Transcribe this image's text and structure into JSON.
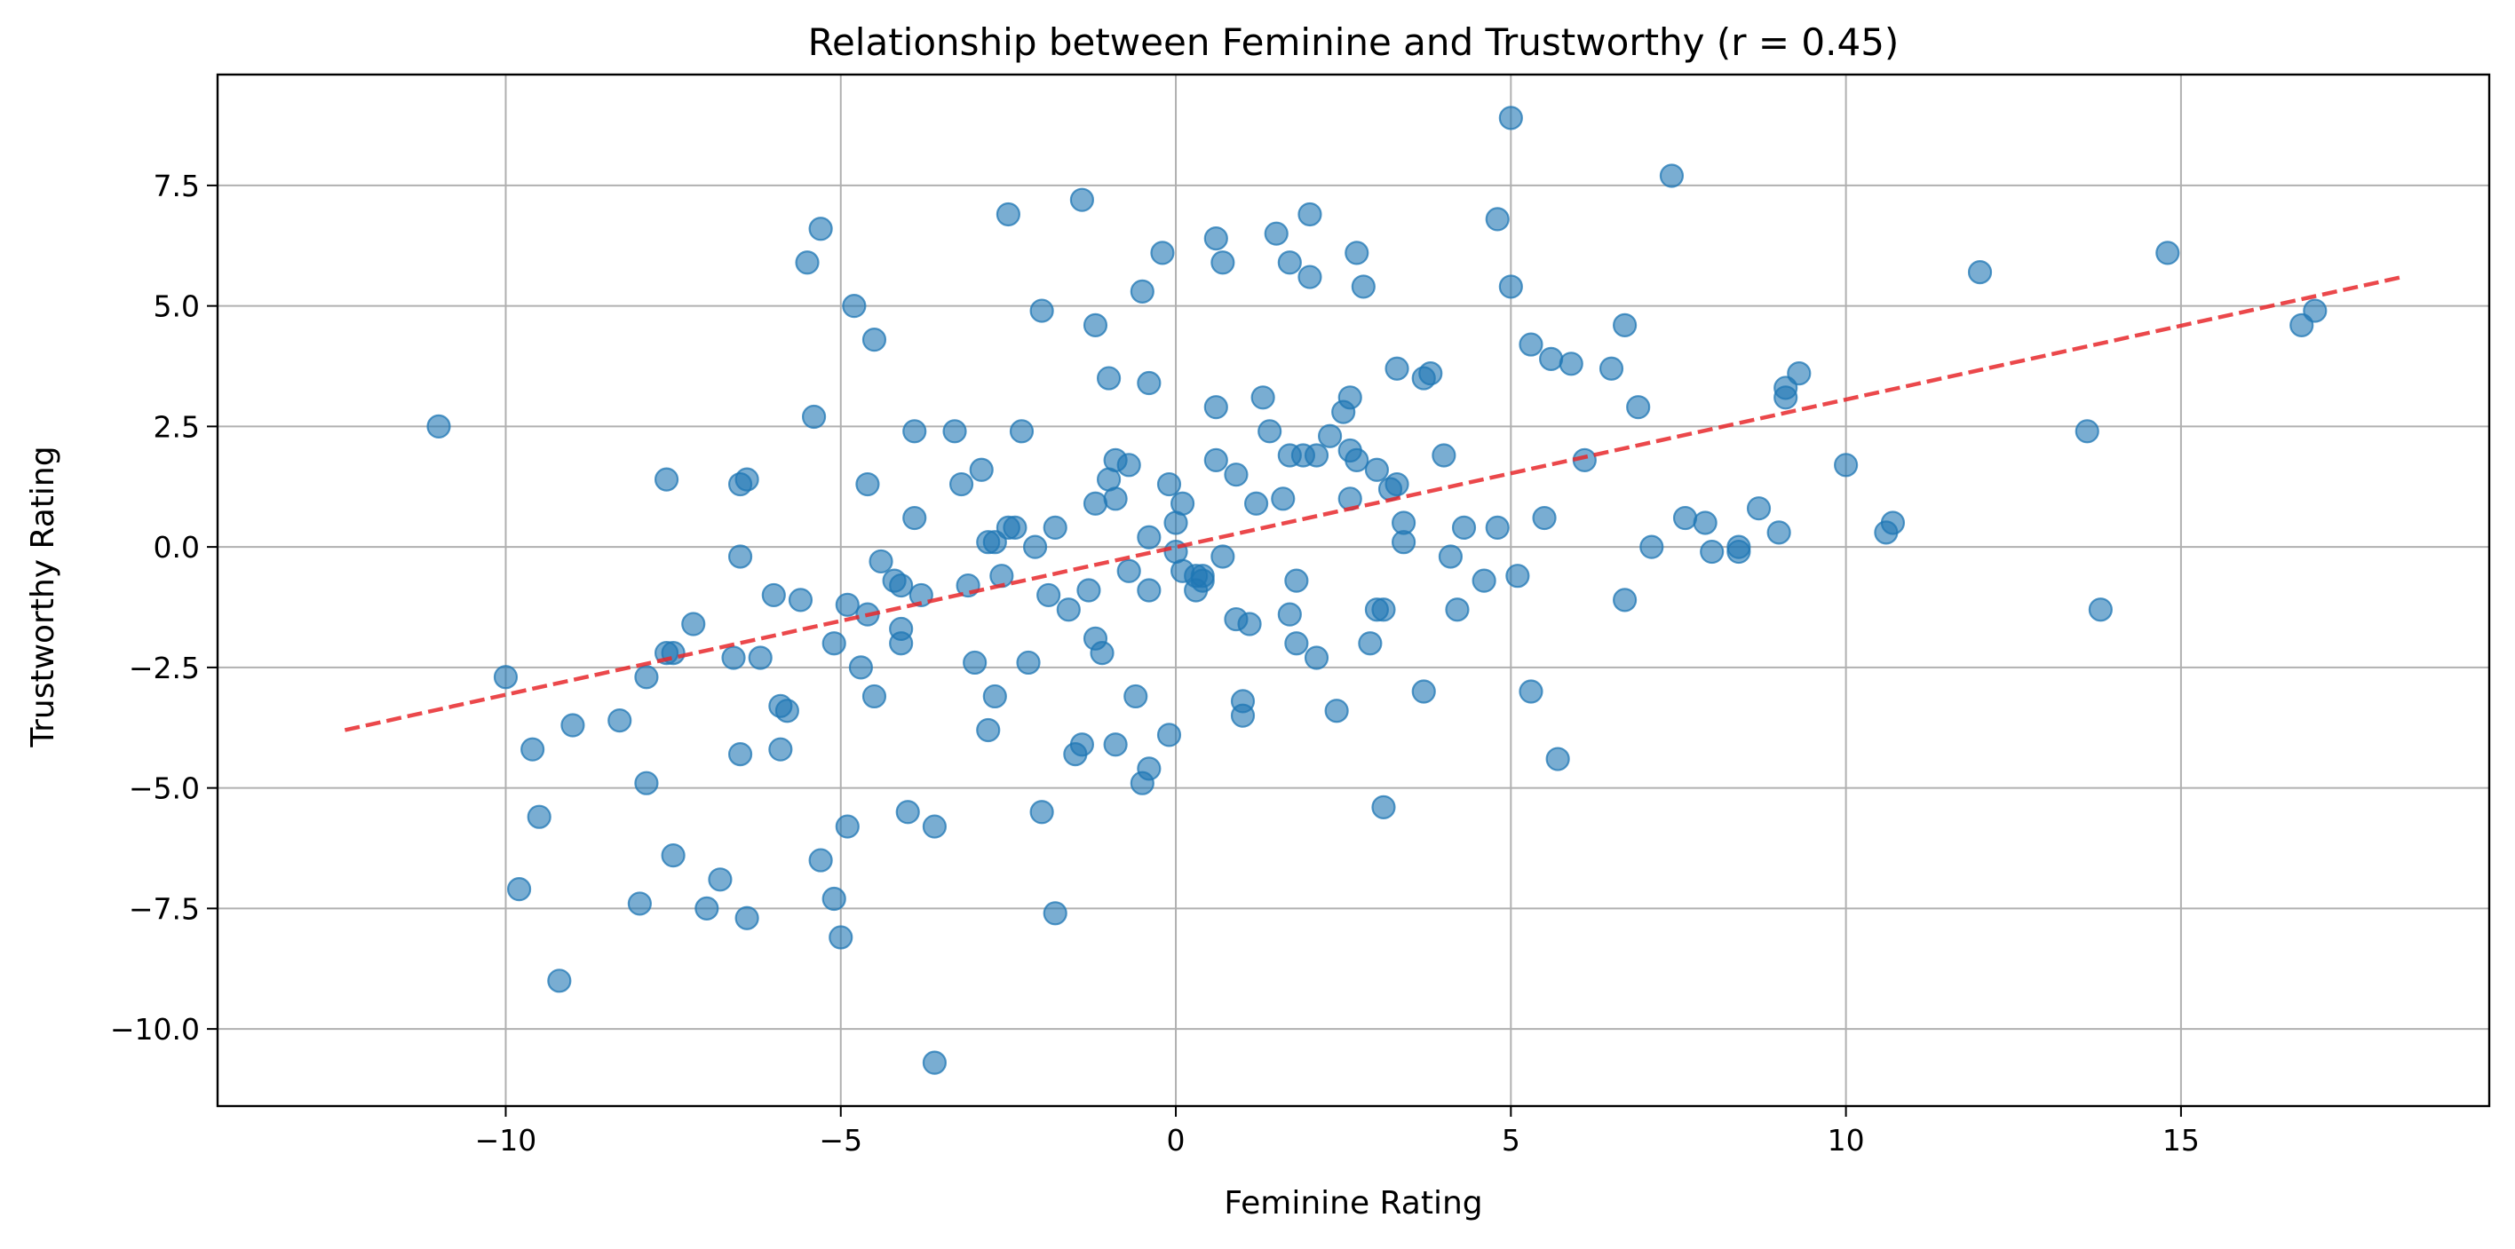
{
  "chart_data": {
    "type": "scatter",
    "title": "Relationship between Feminine and Trustworthy (r = 0.45)",
    "xlabel": "Feminine Rating",
    "ylabel": "Trustworthy Rating",
    "xlim": [
      -14.3,
      19.6
    ],
    "ylim": [
      -11.6,
      9.8
    ],
    "x_ticks": [
      -10,
      -5,
      0,
      5,
      10,
      15
    ],
    "x_tick_labels": [
      "−10",
      "−5",
      "0",
      "5",
      "10",
      "15"
    ],
    "y_ticks": [
      -10,
      -7.5,
      -5,
      -2.5,
      0,
      2.5,
      5,
      7.5
    ],
    "y_tick_labels": [
      "−10.0",
      "−7.5",
      "−5.0",
      "−2.5",
      "0.0",
      "2.5",
      "5.0",
      "7.5"
    ],
    "grid": true,
    "colors": {
      "points": "#1f77b4",
      "trend": "#e8282b"
    },
    "points": [
      [
        -11.0,
        2.5
      ],
      [
        -10.0,
        -2.7
      ],
      [
        -9.8,
        -7.1
      ],
      [
        -9.6,
        -4.2
      ],
      [
        -9.5,
        -5.6
      ],
      [
        -9.2,
        -9.0
      ],
      [
        -9.0,
        -3.7
      ],
      [
        -8.3,
        -3.6
      ],
      [
        -8.0,
        -7.4
      ],
      [
        -7.9,
        -4.9
      ],
      [
        -7.9,
        -2.7
      ],
      [
        -7.6,
        1.4
      ],
      [
        -7.6,
        -2.2
      ],
      [
        -7.5,
        -2.2
      ],
      [
        -7.5,
        -6.4
      ],
      [
        -7.2,
        -1.6
      ],
      [
        -7.0,
        -7.5
      ],
      [
        -6.8,
        -6.9
      ],
      [
        -6.6,
        -2.3
      ],
      [
        -6.5,
        -4.3
      ],
      [
        -6.5,
        -0.2
      ],
      [
        -6.5,
        1.3
      ],
      [
        -6.4,
        1.4
      ],
      [
        -6.4,
        -7.7
      ],
      [
        -6.2,
        -2.3
      ],
      [
        -6.0,
        -1.0
      ],
      [
        -5.9,
        -3.3
      ],
      [
        -5.9,
        -4.2
      ],
      [
        -5.8,
        -3.4
      ],
      [
        -5.6,
        -1.1
      ],
      [
        -5.5,
        5.9
      ],
      [
        -5.4,
        2.7
      ],
      [
        -5.3,
        6.6
      ],
      [
        -5.3,
        -6.5
      ],
      [
        -5.1,
        -2.0
      ],
      [
        -5.1,
        -7.3
      ],
      [
        -5.0,
        -8.1
      ],
      [
        -4.9,
        -1.2
      ],
      [
        -4.9,
        -5.8
      ],
      [
        -4.8,
        5.0
      ],
      [
        -4.7,
        -2.5
      ],
      [
        -4.6,
        -1.4
      ],
      [
        -4.6,
        1.3
      ],
      [
        -4.5,
        4.3
      ],
      [
        -4.5,
        -3.1
      ],
      [
        -4.4,
        -0.3
      ],
      [
        -4.2,
        -0.7
      ],
      [
        -4.1,
        -0.8
      ],
      [
        -4.1,
        -1.7
      ],
      [
        -4.1,
        -2.0
      ],
      [
        -4.0,
        -5.5
      ],
      [
        -3.9,
        2.4
      ],
      [
        -3.9,
        0.6
      ],
      [
        -3.8,
        -1.0
      ],
      [
        -3.6,
        -5.8
      ],
      [
        -3.6,
        -10.7
      ],
      [
        -3.3,
        2.4
      ],
      [
        -3.2,
        1.3
      ],
      [
        -3.1,
        -0.8
      ],
      [
        -3.0,
        -2.4
      ],
      [
        -2.9,
        1.6
      ],
      [
        -2.8,
        0.1
      ],
      [
        -2.8,
        -3.8
      ],
      [
        -2.7,
        0.1
      ],
      [
        -2.7,
        -3.1
      ],
      [
        -2.6,
        -0.6
      ],
      [
        -2.5,
        6.9
      ],
      [
        -2.5,
        0.4
      ],
      [
        -2.4,
        0.4
      ],
      [
        -2.3,
        2.4
      ],
      [
        -2.2,
        -2.4
      ],
      [
        -2.1,
        0.0
      ],
      [
        -2.0,
        -5.5
      ],
      [
        -2.0,
        4.9
      ],
      [
        -1.9,
        -1.0
      ],
      [
        -1.8,
        -7.6
      ],
      [
        -1.8,
        0.4
      ],
      [
        -1.6,
        -1.3
      ],
      [
        -1.5,
        -4.3
      ],
      [
        -1.4,
        -4.1
      ],
      [
        -1.4,
        7.2
      ],
      [
        -1.3,
        -0.9
      ],
      [
        -1.2,
        4.6
      ],
      [
        -1.2,
        0.9
      ],
      [
        -1.2,
        -1.9
      ],
      [
        -1.1,
        -2.2
      ],
      [
        -1.0,
        3.5
      ],
      [
        -1.0,
        1.4
      ],
      [
        -0.9,
        1.0
      ],
      [
        -0.9,
        1.8
      ],
      [
        -0.9,
        -4.1
      ],
      [
        -0.7,
        1.7
      ],
      [
        -0.7,
        -0.5
      ],
      [
        -0.6,
        -3.1
      ],
      [
        -0.5,
        5.3
      ],
      [
        -0.4,
        3.4
      ],
      [
        -0.4,
        0.2
      ],
      [
        -0.4,
        -0.9
      ],
      [
        -0.4,
        -4.6
      ],
      [
        -0.5,
        -4.9
      ],
      [
        -0.2,
        6.1
      ],
      [
        -0.1,
        1.3
      ],
      [
        -0.1,
        -3.9
      ],
      [
        0.0,
        -0.1
      ],
      [
        0.0,
        0.5
      ],
      [
        0.1,
        0.9
      ],
      [
        0.1,
        -0.5
      ],
      [
        0.3,
        -0.6
      ],
      [
        0.3,
        -0.9
      ],
      [
        0.4,
        -0.6
      ],
      [
        0.4,
        -0.7
      ],
      [
        0.6,
        6.4
      ],
      [
        0.6,
        1.8
      ],
      [
        0.6,
        2.9
      ],
      [
        0.7,
        5.9
      ],
      [
        0.7,
        -0.2
      ],
      [
        0.9,
        1.5
      ],
      [
        0.9,
        -1.5
      ],
      [
        1.0,
        -3.2
      ],
      [
        1.0,
        -3.5
      ],
      [
        1.1,
        -1.6
      ],
      [
        1.2,
        0.9
      ],
      [
        1.3,
        3.1
      ],
      [
        1.4,
        2.4
      ],
      [
        1.5,
        6.5
      ],
      [
        1.6,
        1.0
      ],
      [
        1.7,
        1.9
      ],
      [
        1.7,
        5.9
      ],
      [
        1.7,
        -1.4
      ],
      [
        1.8,
        -0.7
      ],
      [
        1.8,
        -2.0
      ],
      [
        1.9,
        1.9
      ],
      [
        2.0,
        5.6
      ],
      [
        2.0,
        6.9
      ],
      [
        2.1,
        1.9
      ],
      [
        2.1,
        -2.3
      ],
      [
        2.3,
        2.3
      ],
      [
        2.4,
        -3.4
      ],
      [
        2.5,
        2.8
      ],
      [
        2.6,
        3.1
      ],
      [
        2.6,
        2.0
      ],
      [
        2.6,
        1.0
      ],
      [
        2.7,
        1.8
      ],
      [
        2.7,
        6.1
      ],
      [
        2.8,
        5.4
      ],
      [
        2.9,
        -2.0
      ],
      [
        3.0,
        1.6
      ],
      [
        3.0,
        -1.3
      ],
      [
        3.1,
        -1.3
      ],
      [
        3.1,
        -5.4
      ],
      [
        3.2,
        1.2
      ],
      [
        3.3,
        1.3
      ],
      [
        3.3,
        3.7
      ],
      [
        3.4,
        0.1
      ],
      [
        3.4,
        0.5
      ],
      [
        3.7,
        3.5
      ],
      [
        3.7,
        -3.0
      ],
      [
        3.8,
        3.6
      ],
      [
        4.0,
        1.9
      ],
      [
        4.1,
        -0.2
      ],
      [
        4.2,
        -1.3
      ],
      [
        4.3,
        0.4
      ],
      [
        4.6,
        -0.7
      ],
      [
        4.8,
        6.8
      ],
      [
        4.8,
        0.4
      ],
      [
        5.0,
        8.9
      ],
      [
        5.0,
        5.4
      ],
      [
        5.1,
        -0.6
      ],
      [
        5.3,
        -3.0
      ],
      [
        5.3,
        4.2
      ],
      [
        5.5,
        0.6
      ],
      [
        5.6,
        3.9
      ],
      [
        5.7,
        -4.4
      ],
      [
        5.9,
        3.8
      ],
      [
        6.1,
        1.8
      ],
      [
        6.5,
        3.7
      ],
      [
        6.7,
        4.6
      ],
      [
        6.7,
        -1.1
      ],
      [
        6.9,
        2.9
      ],
      [
        7.1,
        0.0
      ],
      [
        7.4,
        7.7
      ],
      [
        7.6,
        0.6
      ],
      [
        7.9,
        0.5
      ],
      [
        8.0,
        -0.1
      ],
      [
        8.4,
        -0.1
      ],
      [
        8.4,
        0.0
      ],
      [
        8.7,
        0.8
      ],
      [
        9.0,
        0.3
      ],
      [
        9.1,
        3.3
      ],
      [
        9.1,
        3.1
      ],
      [
        9.3,
        3.6
      ],
      [
        10.0,
        1.7
      ],
      [
        10.6,
        0.3
      ],
      [
        10.7,
        0.5
      ],
      [
        12.0,
        5.7
      ],
      [
        13.6,
        2.4
      ],
      [
        13.8,
        -1.3
      ],
      [
        14.8,
        6.1
      ],
      [
        16.8,
        4.6
      ],
      [
        17.0,
        4.9
      ]
    ],
    "trendline": {
      "x": [
        -12.4,
        18.3
      ],
      "y": [
        -3.8,
        5.6
      ]
    }
  }
}
